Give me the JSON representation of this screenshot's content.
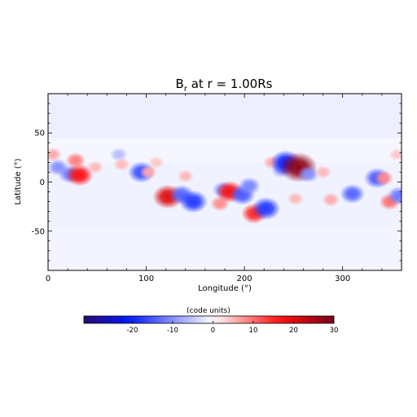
{
  "chart_data": {
    "type": "heatmap",
    "title": "B",
    "title_sub": "r",
    "title_rest": " at r = 1.00Rs",
    "xlabel": "Longitude (°)",
    "ylabel": "Latitude (°)",
    "xlim": [
      0,
      360
    ],
    "ylim": [
      -90,
      90
    ],
    "xticks": [
      0,
      100,
      200,
      300
    ],
    "yticks": [
      -50,
      0,
      50
    ],
    "colorbar": {
      "label": "(code units)",
      "range": [
        -32,
        30
      ],
      "ticks": [
        -20,
        -10,
        0,
        10,
        20,
        30
      ],
      "colors": [
        "#2a0a6e",
        "#0018ff",
        "#ffffff",
        "#ff1010",
        "#7a0018"
      ]
    },
    "background_field": [
      {
        "lat_min": 45,
        "lat_max": 90,
        "value": -1.5
      },
      {
        "lat_min": 20,
        "lat_max": 45,
        "value": -0.8
      },
      {
        "lat_min": -45,
        "lat_max": 20,
        "value": -1.2
      },
      {
        "lat_min": -90,
        "lat_max": -45,
        "value": -1.0
      }
    ],
    "features": [
      {
        "lon": 5,
        "lat": 28,
        "value": 6
      },
      {
        "lon": 10,
        "lat": 15,
        "value": -10
      },
      {
        "lon": 22,
        "lat": 8,
        "value": -12
      },
      {
        "lon": 28,
        "lat": 22,
        "value": 9
      },
      {
        "lon": 32,
        "lat": 7,
        "value": 17
      },
      {
        "lon": 48,
        "lat": 15,
        "value": 5
      },
      {
        "lon": 72,
        "lat": 28,
        "value": -6
      },
      {
        "lon": 75,
        "lat": 18,
        "value": 5
      },
      {
        "lon": 95,
        "lat": 10,
        "value": -16
      },
      {
        "lon": 102,
        "lat": 10,
        "value": 6
      },
      {
        "lon": 110,
        "lat": 20,
        "value": 4
      },
      {
        "lon": 122,
        "lat": -15,
        "value": 20
      },
      {
        "lon": 136,
        "lat": -13,
        "value": -14
      },
      {
        "lon": 148,
        "lat": -20,
        "value": -18
      },
      {
        "lon": 140,
        "lat": 6,
        "value": 5
      },
      {
        "lon": 175,
        "lat": -22,
        "value": 8
      },
      {
        "lon": 178,
        "lat": -8,
        "value": -10
      },
      {
        "lon": 185,
        "lat": -10,
        "value": 17
      },
      {
        "lon": 198,
        "lat": -13,
        "value": -15
      },
      {
        "lon": 205,
        "lat": -4,
        "value": -11
      },
      {
        "lon": 210,
        "lat": -32,
        "value": 15
      },
      {
        "lon": 222,
        "lat": -27,
        "value": -18
      },
      {
        "lon": 228,
        "lat": 20,
        "value": 6
      },
      {
        "lon": 238,
        "lat": 13,
        "value": -10
      },
      {
        "lon": 242,
        "lat": 20,
        "value": -20
      },
      {
        "lon": 255,
        "lat": 15,
        "value": 28
      },
      {
        "lon": 265,
        "lat": 8,
        "value": -10
      },
      {
        "lon": 252,
        "lat": -17,
        "value": 5
      },
      {
        "lon": 280,
        "lat": 10,
        "value": 5
      },
      {
        "lon": 288,
        "lat": -18,
        "value": 6
      },
      {
        "lon": 310,
        "lat": -12,
        "value": -14
      },
      {
        "lon": 335,
        "lat": 4,
        "value": -15
      },
      {
        "lon": 342,
        "lat": 4,
        "value": 8
      },
      {
        "lon": 348,
        "lat": -20,
        "value": 10
      },
      {
        "lon": 357,
        "lat": -14,
        "value": -12
      },
      {
        "lon": 355,
        "lat": 28,
        "value": 4
      }
    ]
  }
}
